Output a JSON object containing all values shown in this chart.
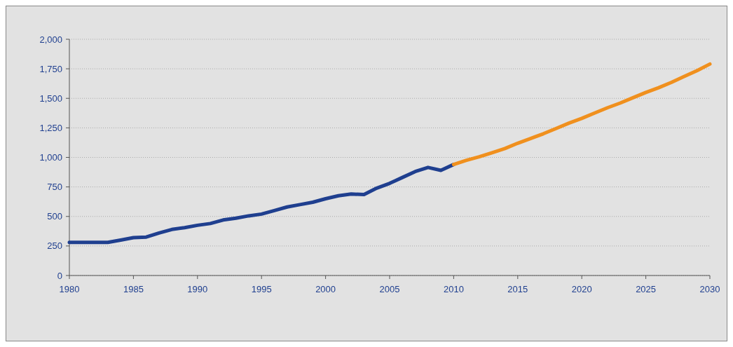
{
  "chart_data": {
    "type": "line",
    "xlim": [
      1980,
      2030
    ],
    "xticks": [
      1980,
      1985,
      1990,
      1995,
      2000,
      2005,
      2010,
      2015,
      2020,
      2025,
      2030
    ],
    "ylim": [
      0,
      2000
    ],
    "yticks": [
      0,
      {
        "value": 250,
        "label": "250"
      },
      {
        "value": 500,
        "label": "500"
      },
      {
        "value": 750,
        "label": "750"
      },
      {
        "value": 1000,
        "label": "1,000"
      },
      {
        "value": 1250,
        "label": "1,250"
      },
      {
        "value": 1500,
        "label": "1,500"
      },
      {
        "value": 1750,
        "label": "1,750"
      },
      {
        "value": 2000,
        "label": "2,000"
      }
    ],
    "grid": "y",
    "line_style": "solid",
    "series": [
      {
        "color": "#1f3f8f",
        "x": [
          1980,
          1981,
          1982,
          1983,
          1984,
          1985,
          1986,
          1987,
          1988,
          1989,
          1990,
          1991,
          1992,
          1993,
          1994,
          1995,
          1996,
          1997,
          1998,
          1999,
          2000,
          2001,
          2002,
          2003,
          2004,
          2005,
          2006,
          2007,
          2008,
          2009,
          2010
        ],
        "values": [
          280,
          280,
          280,
          280,
          300,
          320,
          325,
          360,
          390,
          405,
          425,
          440,
          470,
          485,
          505,
          520,
          550,
          580,
          600,
          620,
          650,
          675,
          690,
          685,
          740,
          780,
          830,
          880,
          915,
          890,
          940
        ]
      },
      {
        "color": "#f0901e",
        "x": [
          2010,
          2011,
          2012,
          2013,
          2014,
          2015,
          2016,
          2017,
          2018,
          2019,
          2020,
          2021,
          2022,
          2023,
          2024,
          2025,
          2026,
          2027,
          2028,
          2029,
          2030
        ],
        "values": [
          940,
          975,
          1005,
          1040,
          1075,
          1120,
          1160,
          1200,
          1245,
          1290,
          1330,
          1375,
          1420,
          1460,
          1505,
          1550,
          1590,
          1635,
          1685,
          1735,
          1790
        ]
      }
    ]
  }
}
